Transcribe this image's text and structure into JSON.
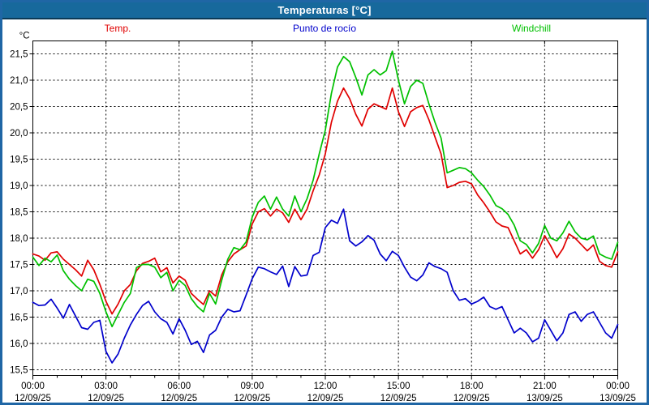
{
  "window": {
    "title": "Temperaturas [°C]"
  },
  "legend": [
    {
      "label": "Temp.",
      "color": "#e00000"
    },
    {
      "label": "Punto de rocío",
      "color": "#0000cc"
    },
    {
      "label": "Windchill",
      "color": "#00c000"
    }
  ],
  "chart_data": {
    "type": "line",
    "title": "Temperaturas [°C]",
    "ylabel": "°C",
    "xlabel": "",
    "ylim": [
      15.5,
      21.5
    ],
    "y_step": 0.5,
    "y_tick_labels": [
      "21,5",
      "21,0",
      "20,5",
      "20,0",
      "19,5",
      "19,0",
      "18,5",
      "18,0",
      "17,5",
      "17,0",
      "16,5",
      "16,0",
      "15,5"
    ],
    "grid": "dashed",
    "legend_position": "top",
    "x_hours_start": 0,
    "x_hours_end": 24,
    "x_step_hours": 0.25,
    "x_minor_tick_hours": 1,
    "x_major_tick_hours": 3,
    "x_ticks": [
      {
        "time": "00:00",
        "date": "12/09/25"
      },
      {
        "time": "03:00",
        "date": "12/09/25"
      },
      {
        "time": "06:00",
        "date": "12/09/25"
      },
      {
        "time": "09:00",
        "date": "12/09/25"
      },
      {
        "time": "12:00",
        "date": "12/09/25"
      },
      {
        "time": "15:00",
        "date": "12/09/25"
      },
      {
        "time": "18:00",
        "date": "12/09/25"
      },
      {
        "time": "21:00",
        "date": "13/09/25"
      },
      {
        "time": "00:00",
        "date": "13/09/25"
      }
    ],
    "series": [
      {
        "name": "Temp.",
        "color": "#e00000",
        "values": [
          17.7,
          17.66,
          17.58,
          17.72,
          17.74,
          17.6,
          17.5,
          17.4,
          17.28,
          17.58,
          17.4,
          17.12,
          16.8,
          16.56,
          16.75,
          17.0,
          17.12,
          17.38,
          17.52,
          17.56,
          17.62,
          17.36,
          17.44,
          17.15,
          17.28,
          17.2,
          16.95,
          16.84,
          16.74,
          17.0,
          16.9,
          17.3,
          17.55,
          17.7,
          17.78,
          17.85,
          18.27,
          18.5,
          18.56,
          18.42,
          18.55,
          18.48,
          18.3,
          18.55,
          18.35,
          18.55,
          18.9,
          19.2,
          19.6,
          20.2,
          20.6,
          20.85,
          20.65,
          20.35,
          20.13,
          20.45,
          20.55,
          20.5,
          20.45,
          20.85,
          20.4,
          20.12,
          20.4,
          20.48,
          20.52,
          20.25,
          19.92,
          19.6,
          18.96,
          19.0,
          19.06,
          19.08,
          19.03,
          18.82,
          18.67,
          18.5,
          18.31,
          18.23,
          18.2,
          17.95,
          17.7,
          17.78,
          17.62,
          17.78,
          18.05,
          17.85,
          17.63,
          17.8,
          18.08,
          18.0,
          17.88,
          17.76,
          17.87,
          17.56,
          17.48,
          17.45,
          17.74
        ]
      },
      {
        "name": "Punto de rocío",
        "color": "#0000cc",
        "values": [
          16.78,
          16.72,
          16.73,
          16.84,
          16.67,
          16.48,
          16.74,
          16.52,
          16.3,
          16.27,
          16.4,
          16.44,
          15.85,
          15.63,
          15.8,
          16.1,
          16.35,
          16.55,
          16.72,
          16.8,
          16.6,
          16.47,
          16.4,
          16.18,
          16.47,
          16.25,
          15.98,
          16.04,
          15.83,
          16.16,
          16.25,
          16.5,
          16.65,
          16.6,
          16.62,
          16.92,
          17.23,
          17.45,
          17.42,
          17.36,
          17.31,
          17.47,
          17.08,
          17.46,
          17.28,
          17.3,
          17.67,
          17.73,
          18.2,
          18.34,
          18.28,
          18.55,
          17.95,
          17.85,
          17.93,
          18.05,
          17.96,
          17.7,
          17.57,
          17.75,
          17.67,
          17.45,
          17.26,
          17.19,
          17.3,
          17.53,
          17.46,
          17.42,
          17.35,
          17.0,
          16.82,
          16.85,
          16.75,
          16.8,
          16.88,
          16.7,
          16.65,
          16.7,
          16.45,
          16.2,
          16.29,
          16.2,
          16.03,
          16.1,
          16.45,
          16.25,
          16.05,
          16.2,
          16.55,
          16.6,
          16.42,
          16.55,
          16.6,
          16.4,
          16.2,
          16.1,
          16.36
        ]
      },
      {
        "name": "Windchill",
        "color": "#00c000",
        "values": [
          17.64,
          17.48,
          17.62,
          17.55,
          17.68,
          17.38,
          17.22,
          17.1,
          17.0,
          17.22,
          17.18,
          16.95,
          16.6,
          16.32,
          16.55,
          16.78,
          16.95,
          17.44,
          17.5,
          17.5,
          17.45,
          17.25,
          17.35,
          17.0,
          17.2,
          17.1,
          16.85,
          16.7,
          16.6,
          16.95,
          16.75,
          17.2,
          17.6,
          17.82,
          17.78,
          17.93,
          18.4,
          18.68,
          18.8,
          18.55,
          18.78,
          18.55,
          18.42,
          18.8,
          18.5,
          18.75,
          19.1,
          19.6,
          20.05,
          20.75,
          21.25,
          21.45,
          21.35,
          21.05,
          20.72,
          21.1,
          21.2,
          21.1,
          21.18,
          21.55,
          21.0,
          20.55,
          20.88,
          21.0,
          20.94,
          20.55,
          20.2,
          19.9,
          19.24,
          19.29,
          19.34,
          19.32,
          19.24,
          19.1,
          18.98,
          18.82,
          18.62,
          18.56,
          18.45,
          18.25,
          17.95,
          17.88,
          17.72,
          17.9,
          18.24,
          18.0,
          17.95,
          18.1,
          18.32,
          18.12,
          18.0,
          17.97,
          18.04,
          17.7,
          17.64,
          17.6,
          17.92
        ]
      }
    ]
  }
}
